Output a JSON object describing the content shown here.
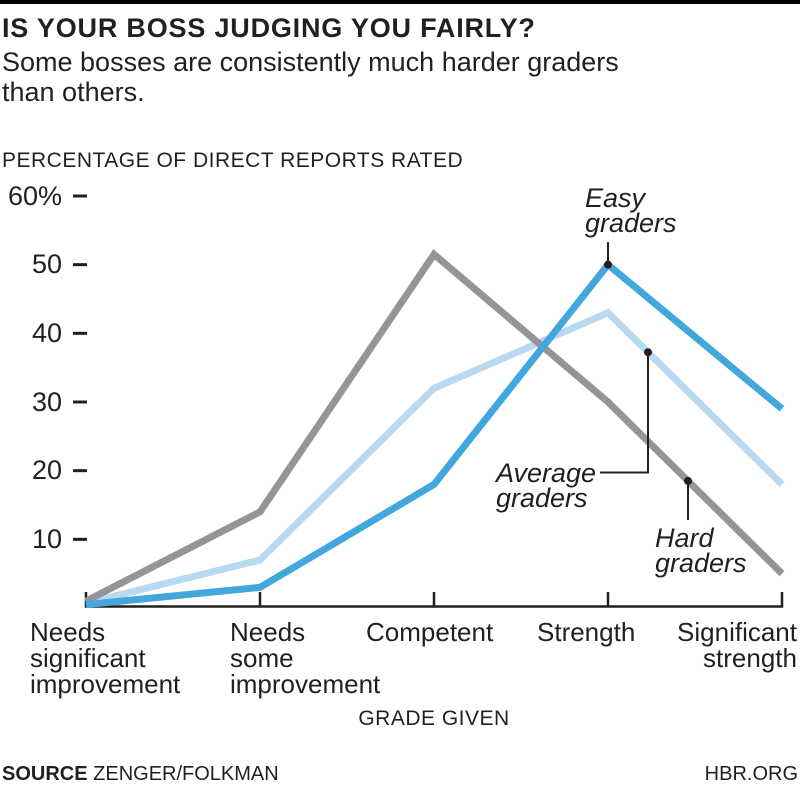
{
  "colors": {
    "easy_graders": "#42A7DC",
    "average_graders": "#B9D9F1",
    "hard_graders": "#939598",
    "text": "#231F20",
    "top_bar": "#000000"
  },
  "header": {
    "title": "IS YOUR BOSS JUDGING YOU FAIRLY?",
    "subtitle_lines": "Some bosses are consistently much harder graders\nthan others."
  },
  "chart_data": {
    "type": "line",
    "title": "PERCENTAGE OF DIRECT REPORTS RATED",
    "xlabel": "GRADE GIVEN",
    "ylabel": "",
    "ylim": [
      0,
      60
    ],
    "grid": false,
    "legend": "inline-annotations",
    "yticks": [
      {
        "label": "60%",
        "value": 60
      },
      {
        "label": "50",
        "value": 50
      },
      {
        "label": "40",
        "value": 40
      },
      {
        "label": "30",
        "value": 30
      },
      {
        "label": "20",
        "value": 20
      },
      {
        "label": "10",
        "value": 10
      }
    ],
    "categories": [
      "Needs significant improvement",
      "Needs some improvement",
      "Competent",
      "Strength",
      "Significant strength"
    ],
    "series": [
      {
        "name": "Easy graders",
        "color_key": "easy_graders",
        "values": [
          0.5,
          3,
          18,
          50,
          29
        ]
      },
      {
        "name": "Average graders",
        "color_key": "average_graders",
        "values": [
          0.7,
          7,
          32,
          43,
          18
        ]
      },
      {
        "name": "Hard graders",
        "color_key": "hard_graders",
        "values": [
          1,
          14,
          51.5,
          30,
          5
        ]
      }
    ]
  },
  "footer": {
    "source_label": "SOURCE",
    "source": "ZENGER/FOLKMAN",
    "site": "HBR.ORG"
  }
}
